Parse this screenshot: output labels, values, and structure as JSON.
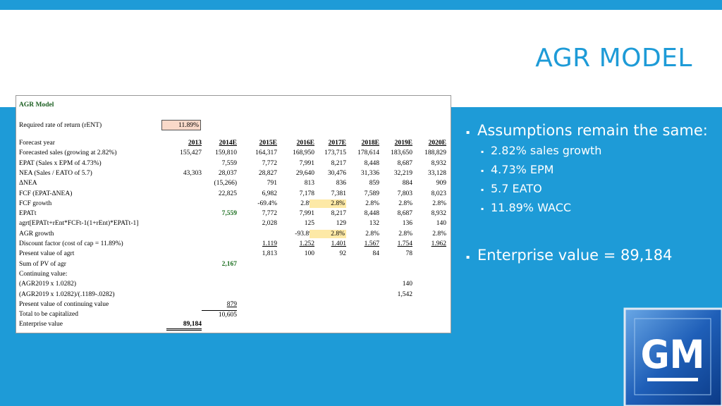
{
  "title": "AGR MODEL",
  "table": {
    "title": "AGR Model",
    "required": {
      "label": "Required rate of return (rENT)",
      "value": "11.89%"
    },
    "header": "Forecast year",
    "columns": [
      "2013",
      "2014E",
      "2015E",
      "2016E",
      "2017E",
      "2018E",
      "2019E",
      "2020E"
    ],
    "rows": [
      {
        "label": "Forecasted sales (growing at 2.82%)",
        "cells": [
          "155,427",
          "159,810",
          "164,317",
          "168,950",
          "173,715",
          "178,614",
          "183,650",
          "188,829"
        ]
      },
      {
        "label": "EPAT (Sales x EPM of 4.73%)",
        "cells": [
          null,
          "7,559",
          "7,772",
          "7,991",
          "8,217",
          "8,448",
          "8,687",
          "8,932"
        ]
      },
      {
        "label": "NEA (Sales / EATO of 5.7)",
        "cells": [
          "43,303",
          "28,037",
          "28,827",
          "29,640",
          "30,476",
          "31,336",
          "32,219",
          "33,128"
        ]
      },
      {
        "label": "ΔNEA",
        "cells": [
          null,
          "(15,266)",
          "791",
          "813",
          "836",
          "859",
          "884",
          "909"
        ]
      },
      {
        "label": "FCF (EPAT-ΔNEA)",
        "cells": [
          null,
          "22,825",
          "6,982",
          "7,178",
          "7,381",
          "7,589",
          "7,803",
          "8,023"
        ]
      },
      {
        "label": "FCF growth",
        "cells": [
          null,
          null,
          "-69.4%",
          "2.8%",
          "2.8%",
          "2.8%",
          "2.8%",
          "2.8%"
        ]
      },
      {
        "label": "EPATt",
        "cells": [
          null,
          "7,559",
          "7,772",
          "7,991",
          "8,217",
          "8,448",
          "8,687",
          "8,932"
        ]
      },
      {
        "label": "agrt[EPATt+rEnt*FCFt-1(1+rEnt)*EPATt-1]",
        "cells": [
          null,
          null,
          "2,028",
          "125",
          "129",
          "132",
          "136",
          "140"
        ]
      },
      {
        "label": "AGR growth",
        "cells": [
          null,
          null,
          null,
          "-93.8%",
          "2.8%",
          "2.8%",
          "2.8%",
          "2.8%"
        ]
      },
      {
        "label": "Discount factor (cost of cap = 11.89%)",
        "cells": [
          null,
          null,
          "1.119",
          "1.252",
          "1.401",
          "1.567",
          "1.754",
          "1.962"
        ]
      },
      {
        "label": "Present value of agrt",
        "cells": [
          null,
          null,
          "1,813",
          "100",
          "92",
          "84",
          "78",
          null
        ]
      },
      {
        "label": "Sum of PV of agr",
        "cells": [
          null,
          "2,167",
          null,
          null,
          null,
          null,
          null,
          null
        ]
      },
      {
        "label": "Continuing value:",
        "cells": [
          null,
          null,
          null,
          null,
          null,
          null,
          null,
          null
        ]
      },
      {
        "label": "(AGR2019 x 1.0282)",
        "cells": [
          null,
          null,
          null,
          null,
          null,
          null,
          "140",
          null
        ]
      },
      {
        "label": "(AGR2019 x 1.0282)/(.1189-.0282)",
        "cells": [
          null,
          null,
          null,
          null,
          null,
          null,
          "1,542",
          null
        ]
      },
      {
        "label": "Present value of continuing value",
        "cells": [
          null,
          "879",
          null,
          null,
          null,
          null,
          null,
          null
        ]
      },
      {
        "label": "Total to be capitalized",
        "cells": [
          null,
          "10,605",
          null,
          null,
          null,
          null,
          null,
          null
        ]
      },
      {
        "label": "Enterprise value",
        "cells": [
          "89,184",
          null,
          null,
          null,
          null,
          null,
          null,
          null
        ]
      }
    ]
  },
  "bullets": {
    "main": "Assumptions remain the same:",
    "sub": [
      "2.82% sales growth",
      "4.73% EPM",
      "5.7 EATO",
      "11.89%  WACC"
    ],
    "conclusion": "Enterprise value = 89,184"
  }
}
